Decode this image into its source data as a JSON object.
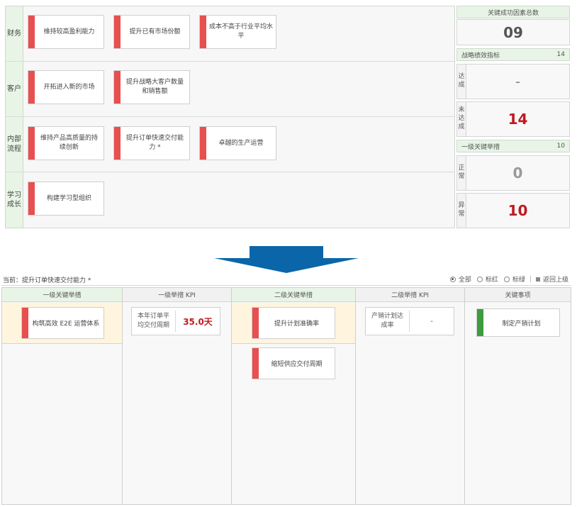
{
  "map": {
    "rows": [
      {
        "label": "财务",
        "cards": [
          "维持较高盈利能力",
          "提升已有市场份额",
          "成本不高于行业平均水平"
        ]
      },
      {
        "label": "客户",
        "cards": [
          "开拓进入新的市场",
          "提升战略大客户数量和销售额"
        ]
      },
      {
        "label": "内部流程",
        "cards": [
          "维持产品高质量的持续创新",
          "提升订单快速交付能力 *",
          "卓越的生产运营"
        ]
      },
      {
        "label": "学习成长",
        "cards": [
          "构建学习型组织"
        ]
      }
    ]
  },
  "summary": {
    "total_label": "关键成功因素总数",
    "total_value": "09",
    "kpi_header": {
      "label": "战略绩效指标",
      "count": "14"
    },
    "achieved": {
      "label": "达成",
      "value": "-"
    },
    "not_achieved": {
      "label": "未达成",
      "value": "14"
    },
    "measures_header": {
      "label": "一级关键举措",
      "count": "10"
    },
    "normal": {
      "label": "正常",
      "value": "0"
    },
    "abnormal": {
      "label": "异常",
      "value": "10"
    }
  },
  "breadcrumb": "当前：提升订单快速交付能力 *",
  "filters": {
    "all": "全部",
    "red": "标红",
    "green": "标绿",
    "back": "返回上级"
  },
  "columns": {
    "h1": "一级关键举措",
    "h2": "一级举措 KPI",
    "h3": "二级关键举措",
    "h4": "二级举措 KPI",
    "h5": "关键事项"
  },
  "detail": {
    "level1_measure": "构筑高效 E2E 运营体系",
    "level1_kpi_name": "本年订单平均交付周期",
    "level1_kpi_value": "35.0天",
    "level2_measures": [
      "提升计划准确率",
      "缩短供应交付周期"
    ],
    "level2_kpi_name": "产销计划达成率",
    "level2_kpi_value": "-",
    "key_item": "制定产销计划"
  },
  "colors": {
    "red_bar": "#e84f4f",
    "green_bar": "#3e9c3e",
    "alert_value": "#c0191f",
    "header_green": "#e8f5e6",
    "arrow_blue": "#0a66a8"
  }
}
